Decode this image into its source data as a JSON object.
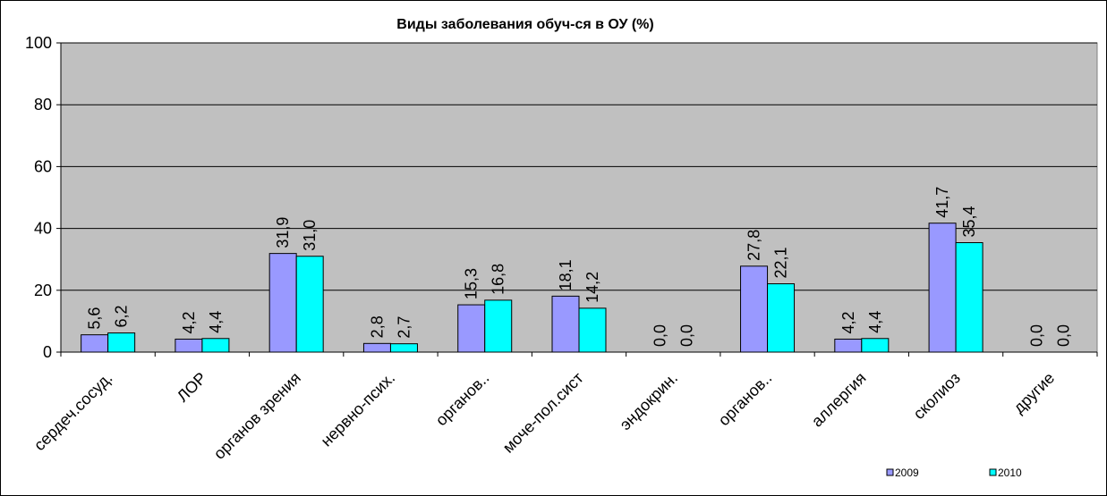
{
  "chart_data": {
    "type": "bar",
    "title": "Виды заболевания обуч-ся в ОУ (%)",
    "xlabel": "",
    "ylabel": "",
    "ylim": [
      0,
      100
    ],
    "yticks": [
      "0",
      "20",
      "40",
      "60",
      "80",
      "100"
    ],
    "grid": true,
    "legend_position": "bottom-right",
    "plot_background": "#c0c0c0",
    "categories": [
      "сердеч.сосуд.",
      "ЛОР",
      "органов зрения",
      "нервно-псих.",
      "органов..",
      "моче-пол.сист",
      "эндокрин.",
      "органов..",
      "аллергия",
      "сколиоз",
      "другие"
    ],
    "series": [
      {
        "name": "2009",
        "color": "#9999ff",
        "values": [
          5.6,
          4.2,
          31.9,
          2.8,
          15.3,
          18.1,
          0.0,
          27.8,
          4.2,
          41.7,
          0.0
        ],
        "labels": [
          "5,6",
          "4,2",
          "31,9",
          "2,8",
          "15,3",
          "18,1",
          "0,0",
          "27,8",
          "4,2",
          "41,7",
          "0,0"
        ]
      },
      {
        "name": "2010",
        "color": "#00ffff",
        "values": [
          6.2,
          4.4,
          31.0,
          2.7,
          16.8,
          14.2,
          0.0,
          22.1,
          4.4,
          35.4,
          0.0
        ],
        "labels": [
          "6,2",
          "4,4",
          "31,0",
          "2,7",
          "16,8",
          "14,2",
          "0,0",
          "22,1",
          "4,4",
          "35,4",
          "0,0"
        ]
      }
    ]
  }
}
